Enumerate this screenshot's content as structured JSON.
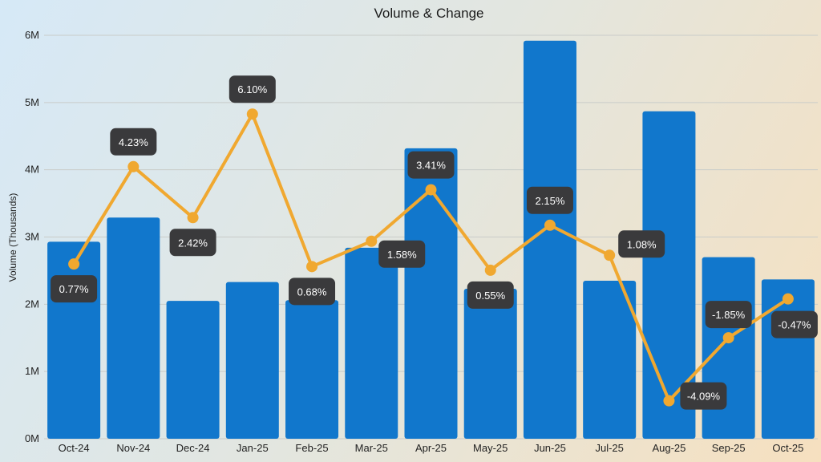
{
  "chart_data": {
    "type": "bar",
    "title": "Volume & Change",
    "xlabel": "",
    "ylabel": "Volume (Thousands)",
    "categories": [
      "Oct-24",
      "Nov-24",
      "Dec-24",
      "Jan-25",
      "Feb-25",
      "Mar-25",
      "Apr-25",
      "May-25",
      "Jun-25",
      "Jul-25",
      "Aug-25",
      "Sep-25",
      "Oct-25"
    ],
    "ylim": [
      0,
      6000000
    ],
    "yticks": [
      0,
      1000000,
      2000000,
      3000000,
      4000000,
      5000000,
      6000000
    ],
    "ytick_labels": [
      "0M",
      "1M",
      "2M",
      "3M",
      "4M",
      "5M",
      "6M"
    ],
    "grid": true,
    "series": [
      {
        "name": "Volume",
        "type": "bar",
        "color": "#1177cc",
        "values": [
          2930000,
          3290000,
          2050000,
          2330000,
          2060000,
          2840000,
          4320000,
          2230000,
          5920000,
          2350000,
          4870000,
          2700000,
          2370000
        ]
      },
      {
        "name": "Change",
        "type": "line",
        "color": "#f0a830",
        "values": [
          0.77,
          4.23,
          2.42,
          6.1,
          0.68,
          1.58,
          3.41,
          0.55,
          2.15,
          1.08,
          -4.09,
          -1.85,
          -0.47
        ],
        "labels": [
          "0.77%",
          "4.23%",
          "2.42%",
          "6.10%",
          "0.68%",
          "1.58%",
          "3.41%",
          "0.55%",
          "2.15%",
          "1.08%",
          "-4.09%",
          "-1.85%",
          "-0.47%"
        ],
        "secondary_ylim": [
          -5.44,
          8.9
        ]
      }
    ],
    "label_box_color": "#3a3a3c"
  }
}
